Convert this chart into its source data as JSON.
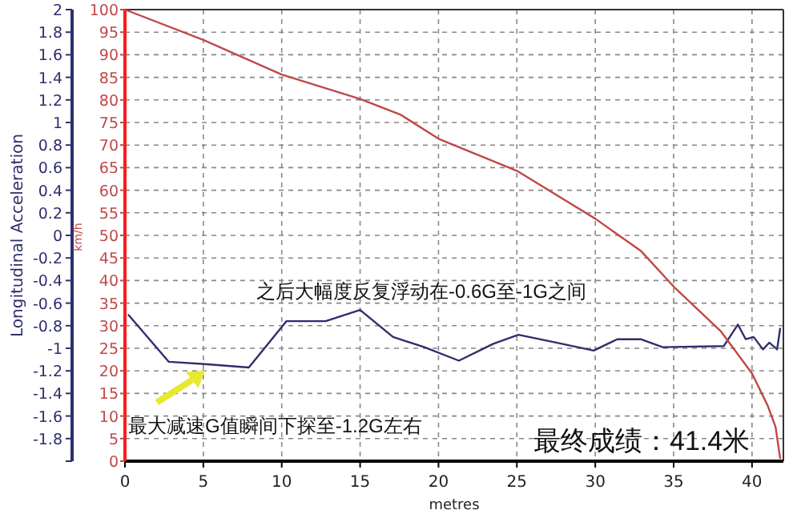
{
  "chart_data": {
    "type": "line",
    "xlabel": "metres",
    "ylabel": "Longitudinal Acceleration",
    "y2label": "km/h",
    "xlim": [
      0,
      42
    ],
    "xticks": [
      0,
      5,
      10,
      15,
      20,
      25,
      30,
      35,
      40
    ],
    "ylim": [
      -2,
      2
    ],
    "yticks": [
      {
        "value": -2,
        "label": null
      },
      -1.8,
      -1.6,
      -1.4,
      -1.2,
      -1,
      -0.8,
      -0.6,
      -0.4,
      -0.2,
      0,
      0.2,
      0.4,
      0.6,
      0.8,
      1,
      1.2,
      1.4,
      1.6,
      1.8,
      2
    ],
    "y2lim": [
      0,
      100
    ],
    "y2ticks": [
      0,
      5,
      10,
      15,
      20,
      25,
      30,
      35,
      40,
      45,
      50,
      55,
      60,
      65,
      70,
      75,
      80,
      85,
      90,
      95,
      100
    ],
    "grid": true,
    "series": [
      {
        "color": "#2e2e6e",
        "x": [
          0.2,
          2.8,
          5.1,
          7.9,
          10.3,
          12.8,
          15.0,
          17.1,
          19.1,
          21.3,
          23.5,
          25.1,
          27.5,
          29.9,
          31.4,
          32.9,
          34.3,
          38.2,
          39.1,
          39.6,
          40.1,
          40.7,
          41.1,
          41.6,
          41.8
        ],
        "values": [
          -0.7,
          -1.12,
          -1.14,
          -1.17,
          -0.76,
          -0.76,
          -0.66,
          -0.9,
          -0.99,
          -1.11,
          -0.96,
          -0.88,
          -0.95,
          -1.02,
          -0.92,
          -0.92,
          -0.99,
          -0.98,
          -0.79,
          -0.92,
          -0.9,
          -1.01,
          -0.95,
          -1.01,
          -0.82
        ]
      },
      {
        "color": "#c04848",
        "axis": "y2",
        "x": [
          0,
          5,
          10,
          15,
          17.6,
          20,
          25,
          30,
          32.9,
          35.1,
          38,
          40,
          41,
          41.5,
          41.8
        ],
        "values": [
          100,
          93.3,
          85.6,
          80.2,
          76.7,
          71.4,
          64.3,
          53.7,
          46.6,
          38.3,
          28.8,
          19.4,
          12.3,
          7.6,
          0.5
        ]
      }
    ],
    "annotations": [
      {
        "text": "最大减速G值瞬间下探至-1.2G左右",
        "x": 5.1,
        "y": -1.14
      },
      "之后大幅度反复浮动在-0.6G至-1G之间",
      "最终成绩：41.4米"
    ]
  }
}
